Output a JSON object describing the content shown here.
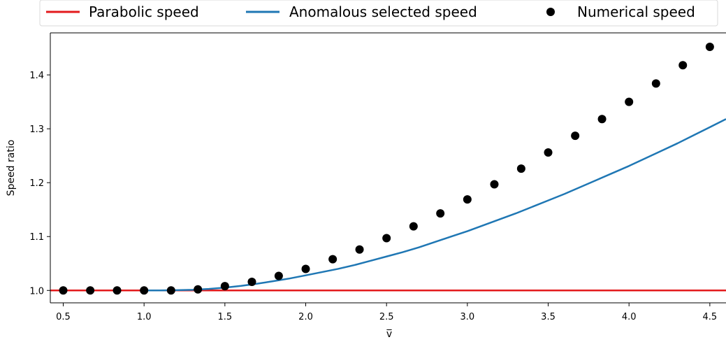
{
  "chart_data": {
    "type": "line",
    "xlabel": "v̅",
    "ylabel": "Speed ratio",
    "xlim": [
      0.42,
      4.6
    ],
    "ylim": [
      0.977,
      1.478
    ],
    "x_ticks": [
      0.5,
      1.0,
      1.5,
      2.0,
      2.5,
      3.0,
      3.5,
      4.0,
      4.5
    ],
    "x_tick_labels": [
      "0.5",
      "1.0",
      "1.5",
      "2.0",
      "2.5",
      "3.0",
      "3.5",
      "4.0",
      "4.5"
    ],
    "y_ticks": [
      1.0,
      1.1,
      1.2,
      1.3,
      1.4
    ],
    "y_tick_labels": [
      "1.0",
      "1.1",
      "1.2",
      "1.3",
      "1.4"
    ],
    "grid": false,
    "legend_position": "top, above plot, horizontal",
    "series": [
      {
        "name": "Parabolic speed",
        "kind": "line",
        "color": "#e31a1c",
        "x": [
          0.42,
          4.6
        ],
        "y": [
          1.0,
          1.0
        ]
      },
      {
        "name": "Anomalous selected speed",
        "kind": "line",
        "color": "#1f77b4",
        "x": [
          1.0,
          1.1,
          1.2,
          1.3,
          1.4,
          1.5,
          1.6,
          1.7,
          1.8,
          1.9,
          2.0,
          2.1,
          2.2,
          2.3,
          2.4,
          2.5,
          2.6,
          2.7,
          2.8,
          2.9,
          3.0,
          3.1,
          3.2,
          3.3,
          3.4,
          3.5,
          3.6,
          3.7,
          3.8,
          3.9,
          4.0,
          4.1,
          4.2,
          4.3,
          4.4,
          4.5,
          4.6
        ],
        "y": [
          1.0,
          1.0,
          1.0005,
          1.0012,
          1.0028,
          1.0052,
          1.0085,
          1.0125,
          1.0172,
          1.0222,
          1.028,
          1.034,
          1.04,
          1.047,
          1.055,
          1.063,
          1.071,
          1.08,
          1.09,
          1.1,
          1.11,
          1.121,
          1.132,
          1.143,
          1.155,
          1.167,
          1.179,
          1.192,
          1.205,
          1.218,
          1.231,
          1.245,
          1.259,
          1.273,
          1.288,
          1.303,
          1.318
        ]
      },
      {
        "name": "Numerical speed",
        "kind": "scatter",
        "color": "#000000",
        "x": [
          0.5,
          0.667,
          0.833,
          1.0,
          1.167,
          1.333,
          1.5,
          1.667,
          1.833,
          2.0,
          2.167,
          2.333,
          2.5,
          2.667,
          2.833,
          3.0,
          3.167,
          3.333,
          3.5,
          3.667,
          3.833,
          4.0,
          4.167,
          4.333,
          4.5
        ],
        "y": [
          1.0,
          1.0,
          1.0,
          1.0,
          1.0,
          1.002,
          1.008,
          1.016,
          1.027,
          1.04,
          1.058,
          1.076,
          1.097,
          1.119,
          1.143,
          1.169,
          1.197,
          1.226,
          1.256,
          1.287,
          1.318,
          1.35,
          1.384,
          1.418,
          1.452
        ]
      }
    ]
  }
}
